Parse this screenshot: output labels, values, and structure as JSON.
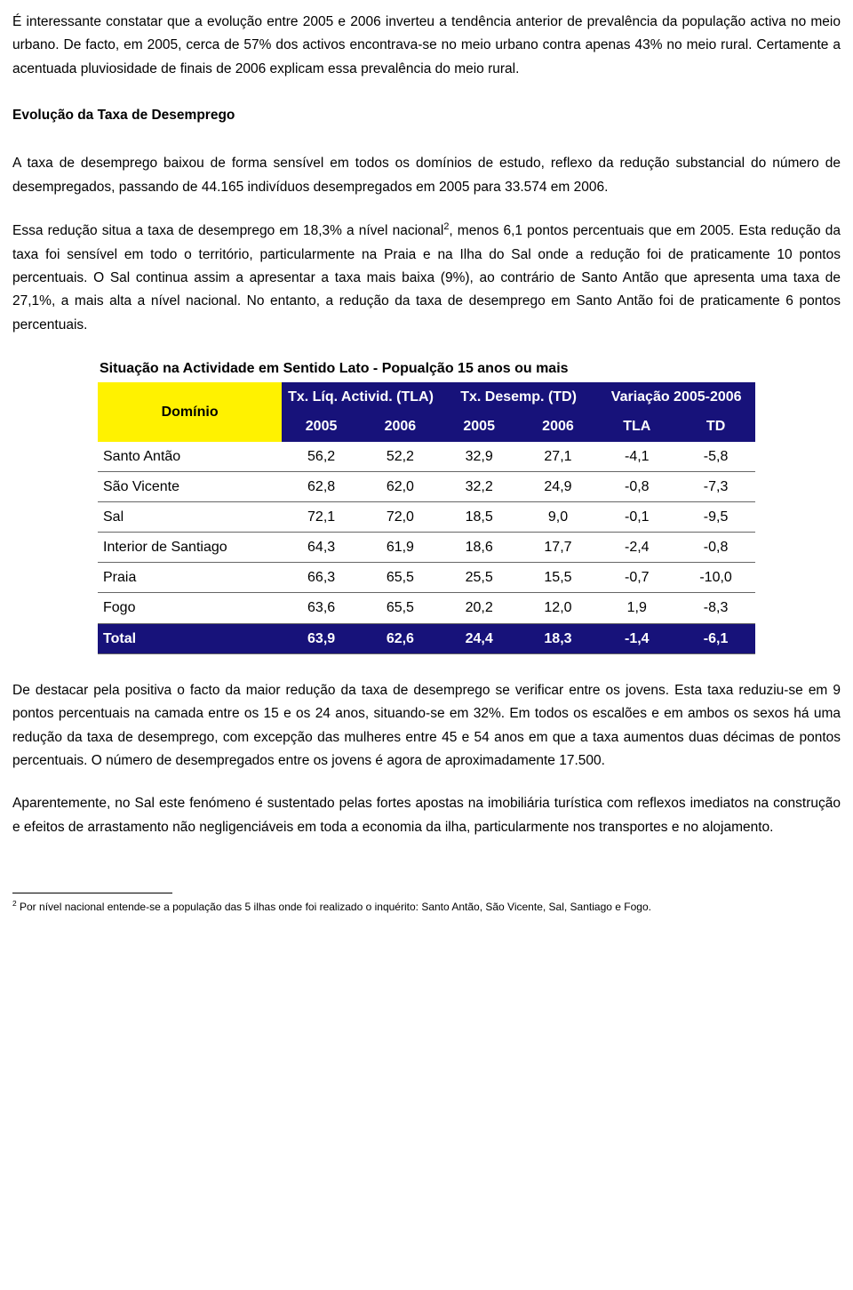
{
  "paragraphs": {
    "p1": "É interessante constatar que a evolução entre 2005 e 2006 inverteu a tendência anterior de prevalência da população activa no meio urbano. De facto, em 2005, cerca de 57% dos activos encontrava-se no meio urbano contra apenas 43% no meio rural. Certamente a acentuada pluviosidade de finais de 2006 explicam essa prevalência do meio rural.",
    "h1": "Evolução da Taxa de Desemprego",
    "p2": "A taxa de desemprego baixou de forma sensível em todos os domínios de estudo, reflexo da redução substancial do número de desempregados, passando de 44.165 indivíduos desempregados em 2005 para 33.574 em 2006.",
    "p3a": "Essa redução situa a taxa de desemprego em 18,3% a nível nacional",
    "p3sup": "2",
    "p3b": ", menos 6,1 pontos percentuais que em 2005. Esta redução da taxa foi sensível em todo o território, particularmente na Praia e na Ilha do Sal onde a redução foi de praticamente 10 pontos percentuais. O Sal continua assim a apresentar a taxa mais baixa (9%), ao contrário de Santo Antão que apresenta uma taxa de 27,1%, a mais alta a nível nacional. No entanto, a redução da taxa de desemprego em Santo Antão foi de praticamente 6 pontos percentuais.",
    "p4": "De destacar pela positiva o facto da maior redução da taxa de desemprego se verificar entre os jovens. Esta taxa reduziu-se em 9 pontos percentuais na camada entre os 15 e os 24 anos, situando-se em 32%. Em todos os escalões e em ambos os sexos há uma redução da taxa de desemprego, com excepção das mulheres entre 45 e 54 anos em que a taxa aumentos duas décimas de pontos percentuais. O número de desempregados entre os jovens é agora de aproximadamente 17.500.",
    "p5": "Aparentemente, no Sal este fenómeno é sustentado pelas fortes apostas na imobiliária turística com reflexos imediatos na construção e efeitos de arrastamento não negligenciáveis em toda a economia da ilha, particularmente nos transportes e no alojamento."
  },
  "table": {
    "title": "Situação na Actividade em Sentido Lato - Popualção 15 anos ou mais",
    "domain_header": "Domínio",
    "group_headers": [
      "Tx. Líq. Activid. (TLA)",
      "Tx. Desemp. (TD)",
      "Variação 2005-2006"
    ],
    "sub_headers": [
      "2005",
      "2006",
      "2005",
      "2006",
      "TLA",
      "TD"
    ],
    "rows": [
      {
        "label": "Santo Antão",
        "cells": [
          "56,2",
          "52,2",
          "32,9",
          "27,1",
          "-4,1",
          "-5,8"
        ]
      },
      {
        "label": "São Vicente",
        "cells": [
          "62,8",
          "62,0",
          "32,2",
          "24,9",
          "-0,8",
          "-7,3"
        ]
      },
      {
        "label": "Sal",
        "cells": [
          "72,1",
          "72,0",
          "18,5",
          "9,0",
          "-0,1",
          "-9,5"
        ]
      },
      {
        "label": "Interior de Santiago",
        "cells": [
          "64,3",
          "61,9",
          "18,6",
          "17,7",
          "-2,4",
          "-0,8"
        ]
      },
      {
        "label": "Praia",
        "cells": [
          "66,3",
          "65,5",
          "25,5",
          "15,5",
          "-0,7",
          "-10,0"
        ]
      },
      {
        "label": "Fogo",
        "cells": [
          "63,6",
          "65,5",
          "20,2",
          "12,0",
          "1,9",
          "-8,3"
        ]
      }
    ],
    "total": {
      "label": "Total",
      "cells": [
        "63,9",
        "62,6",
        "24,4",
        "18,3",
        "-1,4",
        "-6,1"
      ]
    },
    "colors": {
      "header_bg": "#17127a",
      "header_fg": "#ffffff",
      "domain_bg": "#fff200",
      "domain_fg": "#000000",
      "row_border": "#666666"
    },
    "col_widths_pct": [
      28,
      12,
      12,
      12,
      12,
      12,
      12
    ]
  },
  "footnote": {
    "marker": "2",
    "text": " Por nível nacional entende-se a população das 5 ilhas onde foi realizado o inquérito: Santo Antão, São Vicente, Sal, Santiago e Fogo."
  }
}
